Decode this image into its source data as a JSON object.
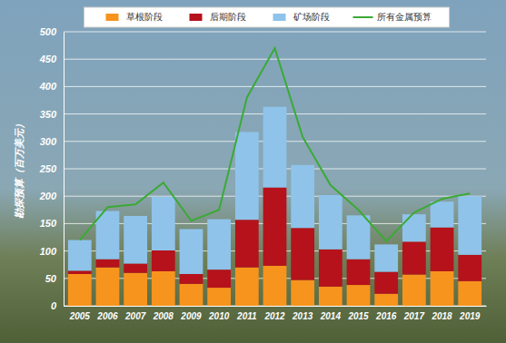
{
  "chart_data": {
    "type": "bar",
    "stacked": true,
    "grid": true,
    "legend": "top",
    "y_label": "勘探预算（百万美元）",
    "categories": [
      "2005",
      "2006",
      "2007",
      "2008",
      "2009",
      "2010",
      "2011",
      "2012",
      "2013",
      "2014",
      "2015",
      "2016",
      "2017",
      "2018",
      "2019"
    ],
    "ylim": [
      0,
      500
    ],
    "yticks": [
      0,
      50,
      100,
      150,
      200,
      250,
      300,
      350,
      400,
      450,
      500
    ],
    "series": [
      {
        "name": "草根阶段",
        "color": "#f7941d",
        "values": [
          58,
          70,
          60,
          63,
          40,
          33,
          70,
          73,
          47,
          35,
          38,
          22,
          57,
          63,
          45
        ]
      },
      {
        "name": "后期阶段",
        "color": "#b5121b",
        "values": [
          6,
          15,
          17,
          38,
          18,
          33,
          87,
          143,
          95,
          68,
          47,
          40,
          60,
          80,
          48
        ]
      },
      {
        "name": "矿场阶段",
        "color": "#8fc3ea",
        "values": [
          56,
          88,
          87,
          98,
          82,
          92,
          160,
          147,
          115,
          99,
          80,
          50,
          50,
          47,
          107
        ]
      },
      {
        "name": "所有金属预算",
        "color": "#3aaa35",
        "type": "line",
        "values": [
          120,
          180,
          185,
          225,
          155,
          175,
          380,
          470,
          308,
          220,
          175,
          118,
          170,
          195,
          205
        ]
      }
    ]
  }
}
